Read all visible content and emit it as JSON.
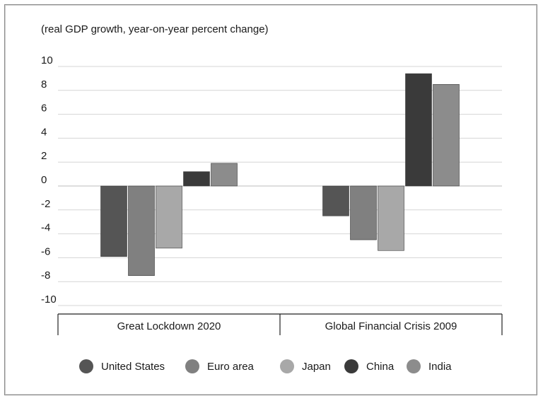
{
  "chart_data": {
    "type": "bar",
    "title": "(real GDP growth, year-on-year percent change)",
    "xlabel": "",
    "ylabel": "",
    "ylim": [
      -10,
      10
    ],
    "yticks": [
      10,
      8,
      6,
      4,
      2,
      0,
      -2,
      -4,
      -6,
      -8,
      -10
    ],
    "grid": true,
    "legend_position": "bottom",
    "categories": [
      "Great Lockdown 2020",
      "Global Financial Crisis 2009"
    ],
    "series": [
      {
        "name": "United States",
        "values": [
          -5.9,
          -2.5
        ],
        "color": "#555555"
      },
      {
        "name": "Euro area",
        "values": [
          -7.5,
          -4.5
        ],
        "color": "#808080"
      },
      {
        "name": "Japan",
        "values": [
          -5.2,
          -5.4
        ],
        "color": "#a8a8a8"
      },
      {
        "name": "China",
        "values": [
          1.2,
          9.4
        ],
        "color": "#3a3a3a"
      },
      {
        "name": "India",
        "values": [
          1.9,
          8.5
        ],
        "color": "#8c8c8c"
      }
    ]
  }
}
